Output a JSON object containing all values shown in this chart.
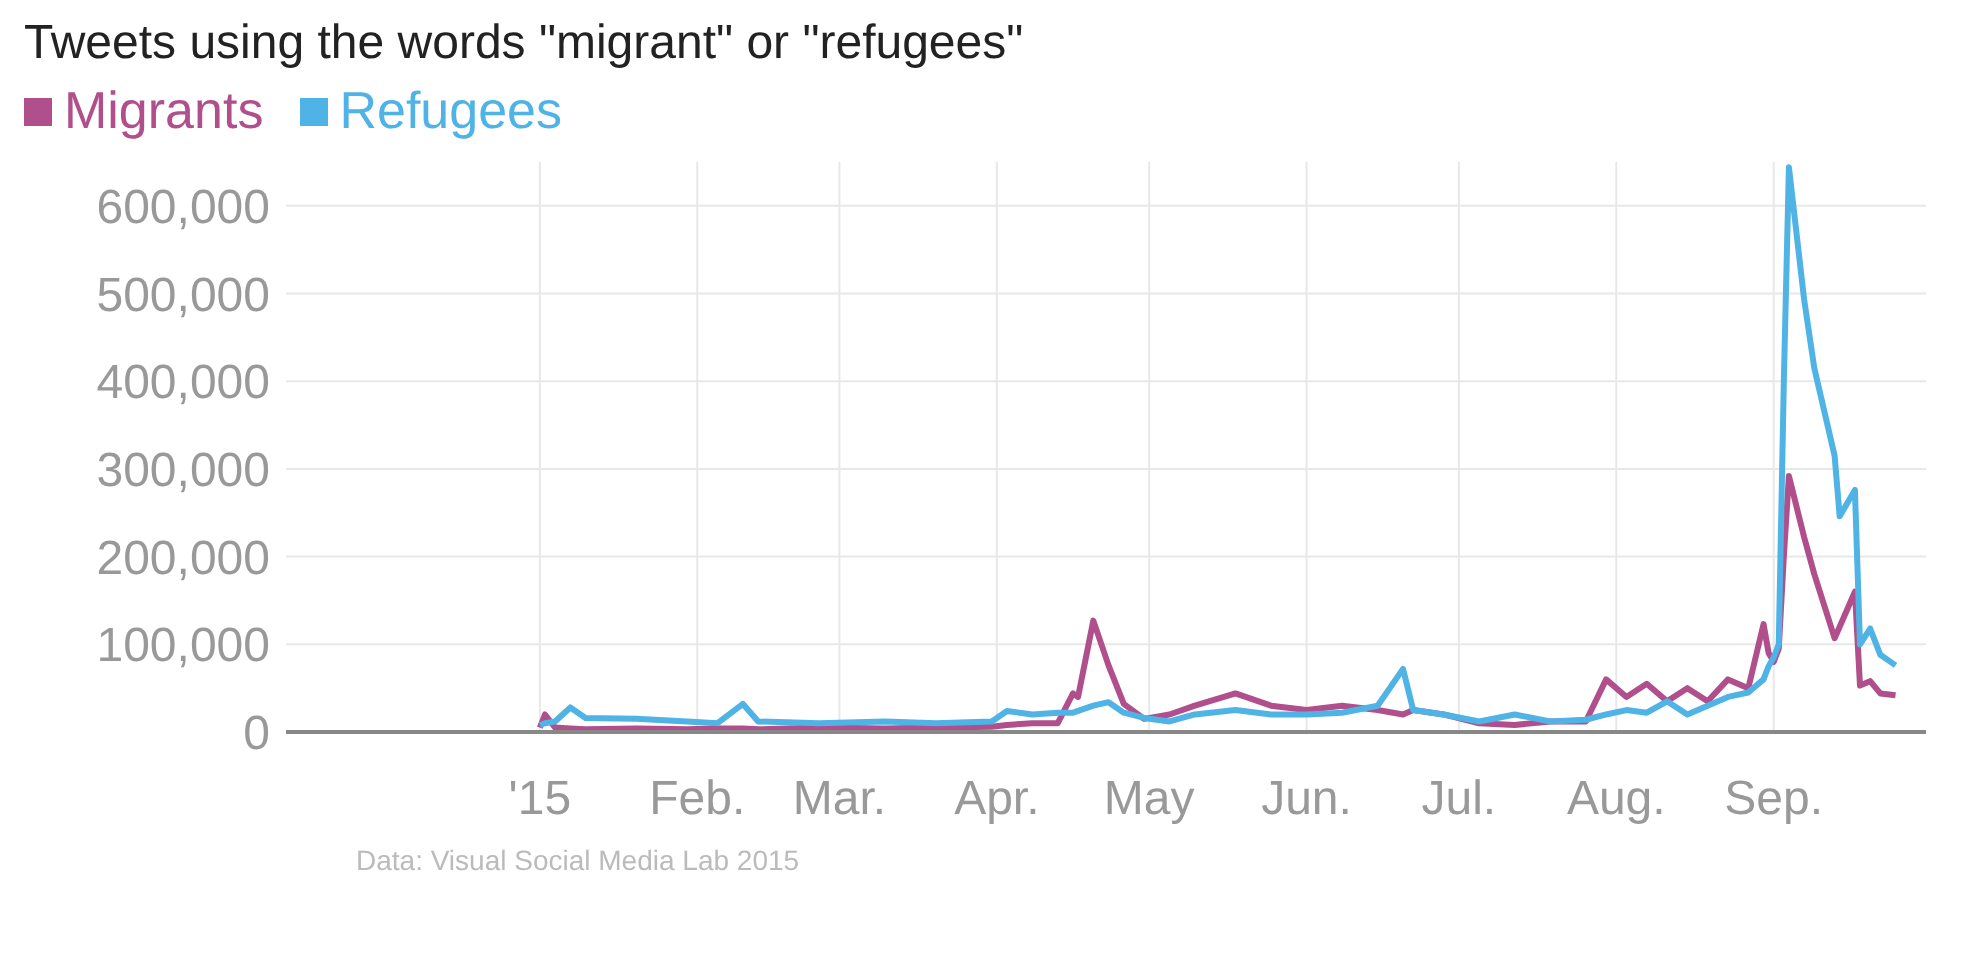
{
  "chart_data": {
    "type": "line",
    "title": "Tweets using the words \"migrant\" or \"refugees\"",
    "annotations": [
      "Data: Visual Social Media Lab 2015"
    ],
    "x": [
      "2015-01-01",
      "2015-01-02",
      "2015-01-04",
      "2015-01-07",
      "2015-01-10",
      "2015-01-20",
      "2015-01-30",
      "2015-02-05",
      "2015-02-10",
      "2015-02-13",
      "2015-02-25",
      "2015-03-10",
      "2015-03-20",
      "2015-03-31",
      "2015-04-03",
      "2015-04-08",
      "2015-04-13",
      "2015-04-16",
      "2015-04-17",
      "2015-04-20",
      "2015-04-23",
      "2015-04-26",
      "2015-04-30",
      "2015-05-05",
      "2015-05-10",
      "2015-05-18",
      "2015-05-25",
      "2015-06-01",
      "2015-06-08",
      "2015-06-15",
      "2015-06-20",
      "2015-06-22",
      "2015-06-28",
      "2015-07-05",
      "2015-07-12",
      "2015-07-19",
      "2015-07-26",
      "2015-07-30",
      "2015-08-03",
      "2015-08-07",
      "2015-08-11",
      "2015-08-15",
      "2015-08-19",
      "2015-08-23",
      "2015-08-27",
      "2015-08-30",
      "2015-08-31",
      "2015-09-01",
      "2015-09-02",
      "2015-09-03",
      "2015-09-04",
      "2015-09-07",
      "2015-09-09",
      "2015-09-13",
      "2015-09-14",
      "2015-09-17",
      "2015-09-18",
      "2015-09-20",
      "2015-09-22",
      "2015-09-25"
    ],
    "series": [
      {
        "name": "Migrants",
        "color": "#b04f8c",
        "values": [
          5000,
          20000,
          5000,
          4000,
          3000,
          4000,
          3000,
          4000,
          4000,
          3000,
          5000,
          4000,
          5000,
          6000,
          8000,
          10000,
          10000,
          44000,
          40000,
          127000,
          76000,
          32000,
          15000,
          20000,
          30000,
          44000,
          30000,
          25000,
          30000,
          25000,
          20000,
          25000,
          20000,
          10000,
          8000,
          12000,
          12000,
          60000,
          40000,
          55000,
          35000,
          50000,
          35000,
          60000,
          50000,
          123000,
          90000,
          80000,
          95000,
          200000,
          292000,
          222000,
          180000,
          107000,
          120000,
          160000,
          53000,
          58000,
          44000,
          42000
        ]
      },
      {
        "name": "Refugees",
        "color": "#4fb3e6",
        "values": [
          8000,
          10000,
          12000,
          28000,
          16000,
          15000,
          12000,
          10000,
          32000,
          12000,
          10000,
          12000,
          10000,
          12000,
          24000,
          20000,
          22000,
          22000,
          24000,
          30000,
          34000,
          22000,
          16000,
          12000,
          20000,
          25000,
          20000,
          20000,
          22000,
          30000,
          72000,
          25000,
          20000,
          12000,
          20000,
          12000,
          14000,
          20000,
          25000,
          22000,
          35000,
          20000,
          30000,
          40000,
          45000,
          60000,
          75000,
          85000,
          100000,
          400000,
          644000,
          493000,
          415000,
          315000,
          246000,
          276000,
          100000,
          118000,
          88000,
          76000
        ]
      }
    ],
    "xlim": [
      "2014-11-12",
      "2015-10-01"
    ],
    "xticks": [
      {
        "value": "2015-01-01",
        "label": "'15"
      },
      {
        "value": "2015-02-01",
        "label": "Feb."
      },
      {
        "value": "2015-03-01",
        "label": "Mar."
      },
      {
        "value": "2015-04-01",
        "label": "Apr."
      },
      {
        "value": "2015-05-01",
        "label": "May"
      },
      {
        "value": "2015-06-01",
        "label": "Jun."
      },
      {
        "value": "2015-07-01",
        "label": "Jul."
      },
      {
        "value": "2015-08-01",
        "label": "Aug."
      },
      {
        "value": "2015-09-01",
        "label": "Sep."
      }
    ],
    "ylim": [
      0,
      650000
    ],
    "yticks": [
      0,
      {
        "value": 100000,
        "label": "100,000"
      },
      {
        "value": 200000,
        "label": "200,000"
      },
      {
        "value": 300000,
        "label": "300,000"
      },
      {
        "value": 400000,
        "label": "400,000"
      },
      {
        "value": 500000,
        "label": "500,000"
      },
      {
        "value": 600000,
        "label": "600,000"
      }
    ],
    "grid": true,
    "legend": "top left"
  }
}
